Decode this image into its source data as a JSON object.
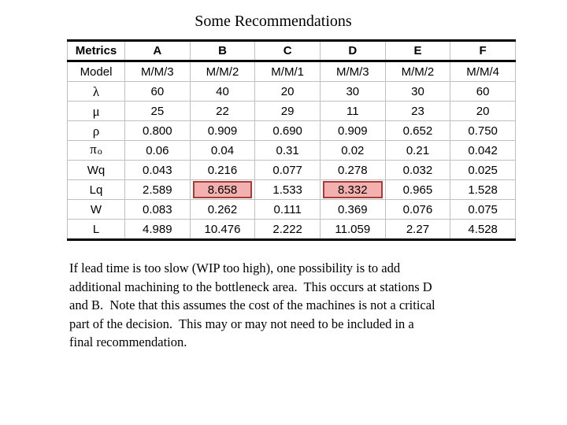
{
  "slide": {
    "title": "Some Recommendations"
  },
  "table": {
    "header": [
      "Metrics",
      "A",
      "B",
      "C",
      "D",
      "E",
      "F"
    ],
    "rows": [
      {
        "label": "Model",
        "sub": "",
        "values": [
          "M/M/3",
          "M/M/2",
          "M/M/1",
          "M/M/3",
          "M/M/2",
          "M/M/4"
        ],
        "highlight": []
      },
      {
        "label": "λ",
        "sub": "",
        "values": [
          "60",
          "40",
          "20",
          "30",
          "30",
          "60"
        ],
        "highlight": []
      },
      {
        "label": "μ",
        "sub": "",
        "values": [
          "25",
          "22",
          "29",
          "11",
          "23",
          "20"
        ],
        "highlight": []
      },
      {
        "label": "ρ",
        "sub": "",
        "values": [
          "0.800",
          "0.909",
          "0.690",
          "0.909",
          "0.652",
          "0.750"
        ],
        "highlight": []
      },
      {
        "label": "π",
        "sub": "o",
        "values": [
          "0.06",
          "0.04",
          "0.31",
          "0.02",
          "0.21",
          "0.042"
        ],
        "highlight": []
      },
      {
        "label": "Wq",
        "sub": "",
        "values": [
          "0.043",
          "0.216",
          "0.077",
          "0.278",
          "0.032",
          "0.025"
        ],
        "highlight": []
      },
      {
        "label": "Lq",
        "sub": "",
        "values": [
          "2.589",
          "8.658",
          "1.533",
          "8.332",
          "0.965",
          "1.528"
        ],
        "highlight": [
          1,
          3
        ]
      },
      {
        "label": "W",
        "sub": "",
        "values": [
          "0.083",
          "0.262",
          "0.111",
          "0.369",
          "0.076",
          "0.075"
        ],
        "highlight": []
      },
      {
        "label": "L",
        "sub": "",
        "values": [
          "4.989",
          "10.476",
          "2.222",
          "11.059",
          "2.27",
          "4.528"
        ],
        "highlight": []
      }
    ],
    "colors": {
      "highlight_fill": "#f2b1ae",
      "highlight_border": "#a93c38",
      "grid_line": "#bfbfbf",
      "heavy_border": "#000000"
    }
  },
  "paragraph": {
    "lines": [
      "If lead time is too slow (WIP too high), one possibility is to add",
      "additional machining to the bottleneck area.  This occurs at stations D",
      "and B.  Note that this assumes the cost of the machines is not a critical",
      "part of the decision.  This may or may not need to be included in a",
      "final recommendation."
    ]
  }
}
